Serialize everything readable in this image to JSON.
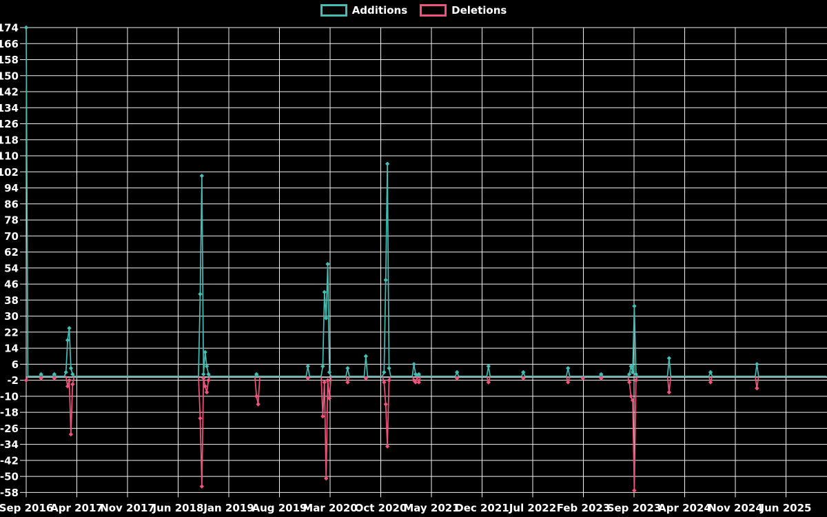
{
  "chart_data": {
    "type": "line",
    "title": "",
    "legend_position": "top-center",
    "grid": true,
    "colors": {
      "background": "#000000",
      "grid": "#f2f2f2",
      "zero_line": "#aebfc2",
      "text": "#ffffff",
      "additions": "#45bcb4",
      "deletions": "#f0547c"
    },
    "y_axis": {
      "min": -58,
      "max": 174,
      "tick_step": 8
    },
    "y_ticks": [
      174,
      166,
      158,
      150,
      142,
      134,
      126,
      118,
      110,
      102,
      94,
      86,
      78,
      70,
      62,
      54,
      46,
      38,
      30,
      22,
      14,
      6,
      -2,
      -10,
      -18,
      -26,
      -34,
      -42,
      -50,
      -58
    ],
    "x_tick_labels": [
      "Sep 2016",
      "Apr 2017",
      "Nov 2017",
      "Jun 2018",
      "Jan 2019",
      "Aug 2019",
      "Mar 2020",
      "Oct 2020",
      "May 2021",
      "Dec 2021",
      "Jul 2022",
      "Feb 2023",
      "Sep 2023",
      "Apr 2024",
      "Nov 2024",
      "Jun 2025"
    ],
    "x_unit": "week",
    "weeks_total": 484,
    "weeks_per_x_tick": 30.57,
    "series": [
      {
        "name": "Additions",
        "color": "#45bcb4",
        "baseline_value": 0,
        "points": {
          "0": 174,
          "9": 1,
          "17": 1,
          "24": 2,
          "25": 18,
          "26": 24,
          "27": 4,
          "28": 1,
          "105": 41,
          "106": 100,
          "107": 1,
          "108": 12,
          "109": 5,
          "110": 1,
          "139": 1,
          "170": 5,
          "179": 5,
          "180": 42,
          "181": 29,
          "182": 56,
          "183": 2,
          "194": 4,
          "205": 10,
          "216": 2,
          "217": 48,
          "218": 106,
          "219": 4,
          "234": 6,
          "235": 1,
          "237": 1,
          "260": 2,
          "279": 5,
          "300": 2,
          "327": 4,
          "347": 1,
          "364": 1,
          "365": 5,
          "366": 2,
          "367": 35,
          "368": 1,
          "388": 9,
          "413": 2,
          "441": 6
        }
      },
      {
        "name": "Deletions",
        "color": "#f0547c",
        "baseline_value": 0,
        "points": {
          "0": -2,
          "9": -1,
          "17": -1,
          "25": -5,
          "26": -2,
          "27": -29,
          "28": -4,
          "105": -21,
          "106": -55,
          "107": -1,
          "108": -5,
          "109": -8,
          "110": -2,
          "139": -10,
          "140": -14,
          "170": -1,
          "179": -20,
          "180": -3,
          "181": -51,
          "182": -2,
          "183": -11,
          "194": -3,
          "205": -1,
          "216": -3,
          "217": -14,
          "218": -35,
          "219": -2,
          "234": -2,
          "235": -3,
          "237": -3,
          "260": -1,
          "279": -3,
          "300": -1,
          "327": -3,
          "336": -1,
          "347": -1,
          "364": -3,
          "365": -10,
          "366": -12,
          "367": -57,
          "368": -2,
          "388": -8,
          "413": -3,
          "441": -6
        }
      }
    ]
  }
}
